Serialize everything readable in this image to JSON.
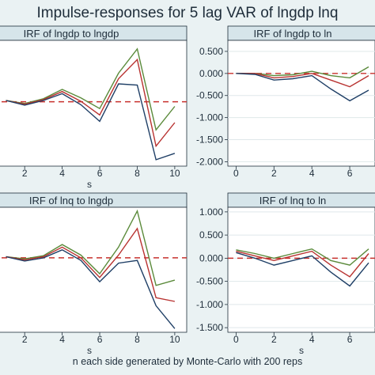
{
  "title": "Impulse-responses for 5 lag VAR of lngdp lnq",
  "footer": "n each side generated by Monte-Carlo with 200 reps",
  "colors": {
    "upper": "#5a8a3a",
    "irf": "#b83230",
    "lower": "#1f3f66",
    "zero": "#c8302c",
    "axis": "#1e2d3a",
    "grid": "#dfe8ea",
    "panel_bg": "#ffffff",
    "title_bar": "#d6e5ea"
  },
  "chart_data": [
    {
      "type": "line",
      "title": "IRF of lngdp to lngdp",
      "xlabel": "s",
      "x_ticks": [
        "2",
        "4",
        "6",
        "8",
        "10"
      ],
      "y_ticks": [],
      "ylim": [
        -2.2,
        0.75
      ],
      "xlim": [
        0.6,
        10.3
      ],
      "x": [
        1,
        2,
        3,
        4,
        5,
        6,
        7,
        8,
        9,
        10
      ],
      "ref_line": -0.69,
      "series": [
        {
          "values": [
            -0.66,
            -0.73,
            -0.62,
            -0.4,
            -0.6,
            -0.85,
            -0.02,
            0.55,
            -1.35,
            -0.8
          ]
        },
        {
          "values": [
            -0.66,
            -0.75,
            -0.64,
            -0.45,
            -0.68,
            -1.0,
            -0.15,
            0.3,
            -1.73,
            -1.18
          ]
        },
        {
          "values": [
            -0.66,
            -0.77,
            -0.66,
            -0.5,
            -0.76,
            -1.15,
            -0.27,
            -0.3,
            -2.05,
            -1.9
          ]
        }
      ]
    },
    {
      "type": "line",
      "title": "IRF of lngdp to ln",
      "xlabel": "",
      "x_ticks": [
        "0",
        "2",
        "4",
        "6"
      ],
      "y_ticks": [
        "0.500",
        "0.000",
        "-0.500",
        "-1.000",
        "-1.500",
        "-2.000"
      ],
      "ylim": [
        -2.1,
        0.75
      ],
      "xlim": [
        -0.1,
        7.0
      ],
      "x": [
        0,
        1,
        2,
        3,
        4,
        5,
        6,
        7
      ],
      "ref_line": 0.0,
      "series": [
        {
          "values": [
            0.0,
            0.0,
            -0.05,
            -0.03,
            0.05,
            -0.05,
            -0.1,
            0.15
          ]
        },
        {
          "values": [
            0.0,
            0.0,
            -0.1,
            -0.07,
            0.0,
            -0.15,
            -0.3,
            -0.05
          ]
        },
        {
          "values": [
            0.0,
            -0.02,
            -0.15,
            -0.12,
            -0.05,
            -0.35,
            -0.62,
            -0.38
          ]
        }
      ]
    },
    {
      "type": "line",
      "title": "IRF of lnq to lngdp",
      "xlabel": "s",
      "x_ticks": [
        "2",
        "4",
        "6",
        "8",
        "10"
      ],
      "y_ticks": [],
      "ylim": [
        -1.4,
        0.95
      ],
      "xlim": [
        0.6,
        10.3
      ],
      "x": [
        1,
        2,
        3,
        4,
        5,
        6,
        7,
        8,
        9,
        10
      ],
      "ref_line": 0.0,
      "series": [
        {
          "values": [
            0.02,
            -0.02,
            0.04,
            0.25,
            0.05,
            -0.3,
            0.2,
            0.88,
            -0.52,
            -0.42
          ]
        },
        {
          "values": [
            0.02,
            -0.04,
            0.02,
            0.2,
            0.0,
            -0.37,
            0.05,
            0.55,
            -0.75,
            -0.82
          ]
        },
        {
          "values": [
            0.02,
            -0.06,
            0.0,
            0.15,
            -0.05,
            -0.45,
            -0.1,
            -0.05,
            -0.9,
            -1.33
          ]
        }
      ]
    },
    {
      "type": "line",
      "title": "IRF of lnq to ln",
      "xlabel": "s",
      "x_ticks": [
        "0",
        "2",
        "4",
        "6"
      ],
      "y_ticks": [
        "1.000",
        "0.500",
        "0.000",
        "-0.500",
        "-1.000",
        "-1.500"
      ],
      "ylim": [
        -1.6,
        1.1
      ],
      "xlim": [
        -0.1,
        7.0
      ],
      "x": [
        0,
        1,
        2,
        3,
        4,
        5,
        6,
        7
      ],
      "ref_line": 0.0,
      "series": [
        {
          "values": [
            0.18,
            0.1,
            0.0,
            0.1,
            0.2,
            -0.05,
            -0.15,
            0.2
          ]
        },
        {
          "values": [
            0.15,
            0.05,
            -0.05,
            0.05,
            0.15,
            -0.15,
            -0.4,
            0.1
          ]
        },
        {
          "values": [
            0.12,
            0.0,
            -0.15,
            -0.05,
            0.05,
            -0.3,
            -0.6,
            -0.1
          ]
        }
      ]
    }
  ]
}
